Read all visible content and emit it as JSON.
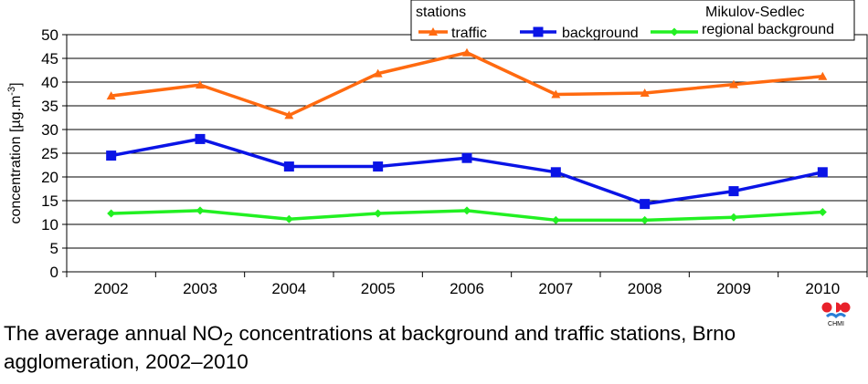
{
  "chart_data": {
    "type": "line",
    "categories": [
      "2002",
      "2003",
      "2004",
      "2005",
      "2006",
      "2007",
      "2008",
      "2009",
      "2010"
    ],
    "ylabel": "concentration [µg.m-3]",
    "ylabel_unit_base": "concentration [µg.m",
    "ylabel_unit_sup": "-3",
    "ylabel_close": "]",
    "ylim": [
      0,
      50
    ],
    "yticks": [
      0,
      5,
      10,
      15,
      20,
      25,
      30,
      35,
      40,
      45,
      50
    ],
    "grid": true,
    "legend_title": "stations",
    "legend_position": "top-right",
    "series": [
      {
        "name": "traffic",
        "color": "#ff6a10",
        "marker": "triangle",
        "values": [
          37.1,
          39.4,
          33.0,
          41.8,
          46.2,
          37.4,
          37.7,
          39.5,
          41.2
        ]
      },
      {
        "name": "background",
        "color": "#0a14e6",
        "marker": "square",
        "values": [
          24.5,
          28.0,
          22.2,
          22.2,
          24.0,
          21.0,
          14.3,
          17.0,
          21.0
        ]
      },
      {
        "name": "regional background",
        "name_line1": "Mikulov-Sedlec",
        "name_line2": "regional background",
        "color": "#22f022",
        "marker": "diamond",
        "values": [
          12.3,
          12.9,
          11.1,
          12.3,
          12.9,
          10.9,
          10.9,
          11.5,
          12.6
        ]
      }
    ]
  },
  "caption": {
    "pre": "The average annual NO",
    "sub": "2",
    "post": " concentrations at background and traffic stations, Brno agglomeration, 2002–2010"
  },
  "logo": {
    "text": "CHMI",
    "red": "#e8212a",
    "blue": "#2a7fd6"
  }
}
